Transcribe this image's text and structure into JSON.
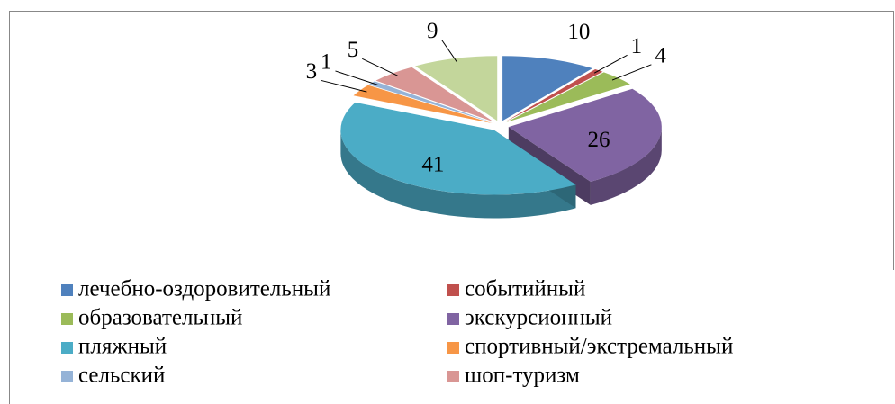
{
  "chart_data": {
    "type": "pie",
    "categories": [
      "лечебно-оздоровительный",
      "событийный",
      "образовательный",
      "экскурсионный",
      "пляжный",
      "спортивный/экстремальный",
      "сельский",
      "шоп-туризм",
      null
    ],
    "values": [
      10,
      1,
      4,
      26,
      41,
      3,
      1,
      5,
      9
    ],
    "colors": [
      "#4f81bd",
      "#c0504d",
      "#9bbb59",
      "#8064a2",
      "#4bacc6",
      "#f79646",
      "#95b3d7",
      "#d99694",
      "#c3d69b"
    ],
    "legend": "bottom"
  }
}
